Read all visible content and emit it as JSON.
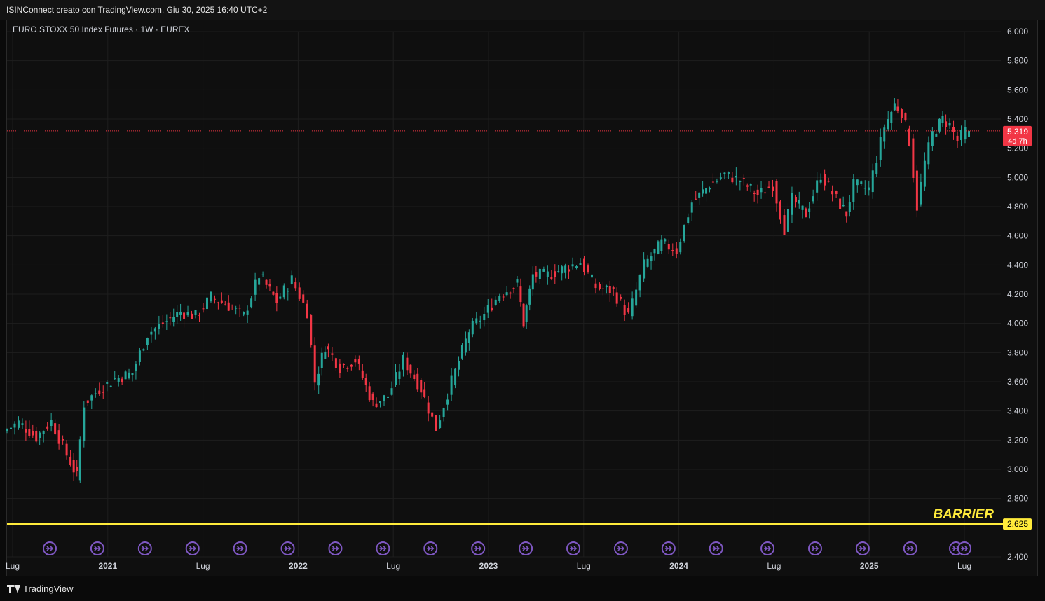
{
  "header": {
    "caption": "ISINConnect creato con TradingView.com, Giu 30, 2025 16:40 UTC+2"
  },
  "legend": {
    "title": "EURO STOXX 50 Index Futures · 1W · EUREX"
  },
  "footer": {
    "brand": "TradingView"
  },
  "colors": {
    "up": "#26a69a",
    "down": "#f23645",
    "barrier": "#ffeb3b",
    "event": "#7e57c2",
    "grid": "#1e1e1e",
    "axis_text": "#d1d4dc"
  },
  "chart_data": {
    "type": "candlestick",
    "interval": "1W",
    "x_ticks": [
      "Lug",
      "2021",
      "Lug",
      "2022",
      "Lug",
      "2023",
      "Lug",
      "2024",
      "Lug",
      "2025",
      "Lug"
    ],
    "y_ticks": [
      "6.000",
      "5.800",
      "5.600",
      "5.400",
      "5.200",
      "5.000",
      "4.800",
      "4.600",
      "4.400",
      "4.200",
      "4.000",
      "3.800",
      "3.600",
      "3.400",
      "3.200",
      "3.000",
      "2.800",
      "2.400"
    ],
    "ylim": [
      2.4,
      6.0
    ],
    "xlim": [
      2020.5,
      2025.52
    ],
    "last_price": {
      "value": 5.319,
      "label": "5.319",
      "countdown": "4d 7h"
    },
    "barrier": {
      "value": 2.625,
      "label": "BARRIER",
      "price_label": "2.625"
    },
    "event_markers": [
      2020.73,
      2020.98,
      2021.23,
      2021.48,
      2021.73,
      2021.98,
      2022.23,
      2022.48,
      2022.73,
      2022.98,
      2023.23,
      2023.48,
      2023.73,
      2023.98,
      2024.23,
      2024.5,
      2024.75,
      2025.0,
      2025.25,
      2025.49,
      2025.52
    ],
    "series": [
      {
        "date": 2020.5,
        "close": 3.26
      },
      {
        "date": 2020.58,
        "close": 3.32
      },
      {
        "date": 2020.67,
        "close": 3.22
      },
      {
        "date": 2020.75,
        "close": 3.33
      },
      {
        "date": 2020.83,
        "close": 3.1
      },
      {
        "date": 2020.88,
        "close": 2.95
      },
      {
        "date": 2020.92,
        "close": 3.45
      },
      {
        "date": 2021.0,
        "close": 3.55
      },
      {
        "date": 2021.08,
        "close": 3.62
      },
      {
        "date": 2021.17,
        "close": 3.66
      },
      {
        "date": 2021.25,
        "close": 3.93
      },
      {
        "date": 2021.33,
        "close": 4.0
      },
      {
        "date": 2021.42,
        "close": 4.08
      },
      {
        "date": 2021.5,
        "close": 4.05
      },
      {
        "date": 2021.58,
        "close": 4.18
      },
      {
        "date": 2021.67,
        "close": 4.12
      },
      {
        "date": 2021.75,
        "close": 4.05
      },
      {
        "date": 2021.83,
        "close": 4.33
      },
      {
        "date": 2021.92,
        "close": 4.15
      },
      {
        "date": 2022.0,
        "close": 4.3
      },
      {
        "date": 2022.08,
        "close": 4.08
      },
      {
        "date": 2022.12,
        "close": 3.6
      },
      {
        "date": 2022.17,
        "close": 3.85
      },
      {
        "date": 2022.25,
        "close": 3.7
      },
      {
        "date": 2022.33,
        "close": 3.75
      },
      {
        "date": 2022.42,
        "close": 3.45
      },
      {
        "date": 2022.5,
        "close": 3.5
      },
      {
        "date": 2022.58,
        "close": 3.75
      },
      {
        "date": 2022.67,
        "close": 3.55
      },
      {
        "date": 2022.75,
        "close": 3.28
      },
      {
        "date": 2022.83,
        "close": 3.6
      },
      {
        "date": 2022.92,
        "close": 3.95
      },
      {
        "date": 2023.0,
        "close": 4.06
      },
      {
        "date": 2023.08,
        "close": 4.2
      },
      {
        "date": 2023.17,
        "close": 4.27
      },
      {
        "date": 2023.2,
        "close": 4.0
      },
      {
        "date": 2023.25,
        "close": 4.33
      },
      {
        "date": 2023.33,
        "close": 4.33
      },
      {
        "date": 2023.42,
        "close": 4.38
      },
      {
        "date": 2023.5,
        "close": 4.42
      },
      {
        "date": 2023.58,
        "close": 4.25
      },
      {
        "date": 2023.67,
        "close": 4.22
      },
      {
        "date": 2023.75,
        "close": 4.05
      },
      {
        "date": 2023.83,
        "close": 4.4
      },
      {
        "date": 2023.92,
        "close": 4.55
      },
      {
        "date": 2024.0,
        "close": 4.5
      },
      {
        "date": 2024.08,
        "close": 4.83
      },
      {
        "date": 2024.17,
        "close": 4.95
      },
      {
        "date": 2024.25,
        "close": 5.02
      },
      {
        "date": 2024.33,
        "close": 4.98
      },
      {
        "date": 2024.42,
        "close": 4.88
      },
      {
        "date": 2024.5,
        "close": 4.95
      },
      {
        "date": 2024.56,
        "close": 4.65
      },
      {
        "date": 2024.6,
        "close": 4.85
      },
      {
        "date": 2024.67,
        "close": 4.75
      },
      {
        "date": 2024.75,
        "close": 5.02
      },
      {
        "date": 2024.83,
        "close": 4.85
      },
      {
        "date": 2024.88,
        "close": 4.75
      },
      {
        "date": 2024.92,
        "close": 4.95
      },
      {
        "date": 2025.0,
        "close": 4.92
      },
      {
        "date": 2025.08,
        "close": 5.35
      },
      {
        "date": 2025.13,
        "close": 5.5
      },
      {
        "date": 2025.17,
        "close": 5.45
      },
      {
        "date": 2025.21,
        "close": 5.25
      },
      {
        "date": 2025.25,
        "close": 4.8
      },
      {
        "date": 2025.29,
        "close": 5.1
      },
      {
        "date": 2025.33,
        "close": 5.3
      },
      {
        "date": 2025.38,
        "close": 5.4
      },
      {
        "date": 2025.42,
        "close": 5.36
      },
      {
        "date": 2025.46,
        "close": 5.25
      },
      {
        "date": 2025.5,
        "close": 5.319
      }
    ]
  }
}
